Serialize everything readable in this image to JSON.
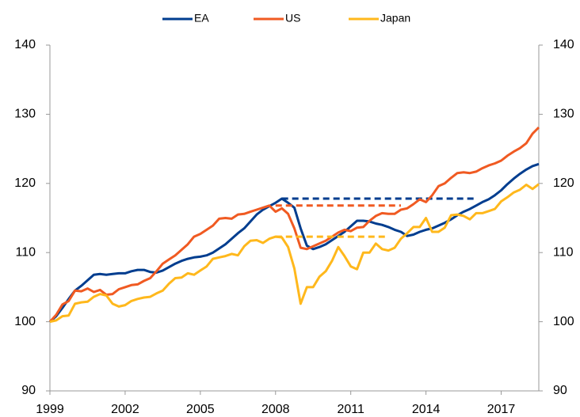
{
  "chart_data": {
    "type": "line",
    "x": [
      1999,
      1999.25,
      1999.5,
      1999.75,
      2000,
      2000.25,
      2000.5,
      2000.75,
      2001,
      2001.25,
      2001.5,
      2001.75,
      2002,
      2002.25,
      2002.5,
      2002.75,
      2003,
      2003.25,
      2003.5,
      2003.75,
      2004,
      2004.25,
      2004.5,
      2004.75,
      2005,
      2005.25,
      2005.5,
      2005.75,
      2006,
      2006.25,
      2006.5,
      2006.75,
      2007,
      2007.25,
      2007.5,
      2007.75,
      2008,
      2008.25,
      2008.5,
      2008.75,
      2009,
      2009.25,
      2009.5,
      2009.75,
      2010,
      2010.25,
      2010.5,
      2010.75,
      2011,
      2011.25,
      2011.5,
      2011.75,
      2012,
      2012.25,
      2012.5,
      2012.75,
      2013,
      2013.25,
      2013.5,
      2013.75,
      2014,
      2014.25,
      2014.5,
      2014.75,
      2015,
      2015.25,
      2015.5,
      2015.75,
      2016,
      2016.25,
      2016.5,
      2016.75,
      2017,
      2017.25,
      2017.5,
      2017.75,
      2018,
      2018.25,
      2018.5
    ],
    "series": [
      {
        "name": "EA",
        "color": "#003d8f",
        "values": [
          100,
          100.8,
          102,
          103.3,
          104.5,
          105.2,
          106,
          106.8,
          106.9,
          106.8,
          106.9,
          107.0,
          107.0,
          107.3,
          107.5,
          107.5,
          107.2,
          107.1,
          107.4,
          107.9,
          108.4,
          108.8,
          109.1,
          109.3,
          109.4,
          109.6,
          110.0,
          110.6,
          111.2,
          112.0,
          112.8,
          113.5,
          114.5,
          115.5,
          116.2,
          116.7,
          117.2,
          117.8,
          117.2,
          116.5,
          113.5,
          111.0,
          110.5,
          110.8,
          111.2,
          111.8,
          112.4,
          113.0,
          113.8,
          114.6,
          114.6,
          114.5,
          114.2,
          114.0,
          113.7,
          113.3,
          113.0,
          112.4,
          112.6,
          113.0,
          113.3,
          113.5,
          113.9,
          114.3,
          114.8,
          115.4,
          115.9,
          116.3,
          116.8,
          117.3,
          117.7,
          118.3,
          119.0,
          119.9,
          120.7,
          121.4,
          122.0,
          122.5,
          122.8
        ],
        "ref_value": 117.8,
        "ref_x": [
          2008.25,
          2016
        ]
      },
      {
        "name": "US",
        "color": "#f05a22",
        "values": [
          100,
          101,
          102.5,
          103.0,
          104.5,
          104.4,
          104.8,
          104.3,
          104.6,
          103.9,
          104.0,
          104.7,
          105.0,
          105.3,
          105.4,
          105.9,
          106.3,
          107.3,
          108.4,
          109.0,
          109.6,
          110.4,
          111.2,
          112.3,
          112.7,
          113.3,
          113.9,
          114.9,
          115.0,
          114.9,
          115.5,
          115.6,
          115.9,
          116.2,
          116.5,
          116.8,
          115.9,
          116.4,
          115.6,
          113.5,
          110.7,
          110.5,
          110.9,
          111.3,
          111.7,
          112.3,
          112.9,
          113.3,
          113.1,
          113.6,
          113.7,
          114.6,
          115.3,
          115.7,
          115.6,
          115.6,
          116.2,
          116.4,
          117.0,
          117.7,
          117.3,
          118.3,
          119.6,
          120.0,
          120.8,
          121.5,
          121.6,
          121.5,
          121.7,
          122.2,
          122.6,
          122.9,
          123.3,
          124.0,
          124.6,
          125.1,
          125.8,
          127.2,
          128.1
        ],
        "ref_value": 116.8,
        "ref_x": [
          2008,
          2013
        ]
      },
      {
        "name": "Japan",
        "color": "#ffb81c",
        "values": [
          100,
          100.2,
          100.8,
          100.9,
          102.6,
          102.8,
          102.9,
          103.6,
          104.0,
          103.8,
          102.6,
          102.2,
          102.4,
          103.0,
          103.3,
          103.5,
          103.6,
          104.1,
          104.5,
          105.5,
          106.3,
          106.4,
          107.0,
          106.8,
          107.4,
          108.0,
          109.1,
          109.3,
          109.5,
          109.8,
          109.6,
          110.9,
          111.7,
          111.8,
          111.4,
          112.0,
          112.3,
          112.2,
          110.8,
          107.7,
          102.6,
          105.0,
          105.0,
          106.5,
          107.3,
          108.8,
          110.8,
          109.5,
          108.0,
          107.6,
          110.0,
          110.0,
          111.3,
          110.5,
          110.3,
          110.7,
          112.0,
          112.8,
          113.7,
          113.7,
          115.0,
          113.0,
          113.0,
          113.6,
          115.4,
          115.5,
          115.3,
          114.8,
          115.7,
          115.7,
          116.0,
          116.3,
          117.4,
          118.0,
          118.7,
          119.1,
          119.8,
          119.2,
          119.9
        ],
        "ref_value": 112.3,
        "ref_x": [
          2008,
          2012.5
        ]
      }
    ],
    "xlim": [
      1999,
      2018.5
    ],
    "xticks": [
      1999,
      2002,
      2005,
      2008,
      2011,
      2014,
      2017
    ],
    "ylim": [
      90,
      140
    ],
    "yticks": [
      90,
      100,
      110,
      120,
      130,
      140
    ],
    "y2lim": [
      90,
      140
    ],
    "y2ticks": [
      90,
      100,
      110,
      120,
      130,
      140
    ],
    "legend": "top"
  }
}
